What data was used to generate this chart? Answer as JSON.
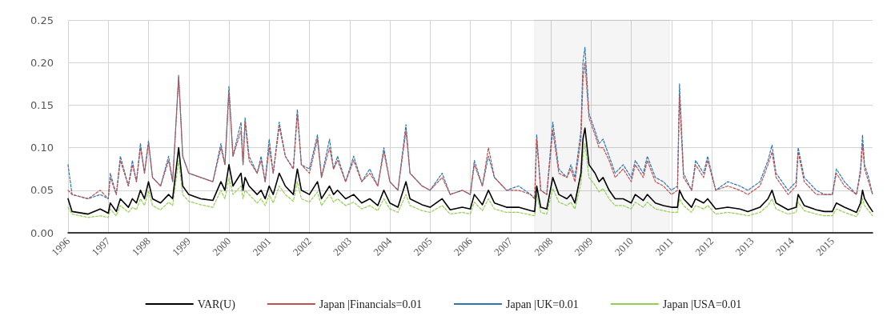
{
  "chart_data": {
    "type": "line",
    "x": [
      1996.0,
      1996.1,
      1996.5,
      1996.8,
      1997.0,
      1997.05,
      1997.2,
      1997.3,
      1997.5,
      1997.6,
      1997.7,
      1997.8,
      1997.9,
      1998.0,
      1998.1,
      1998.3,
      1998.5,
      1998.6,
      1998.75,
      1998.85,
      1999.0,
      1999.3,
      1999.6,
      1999.8,
      1999.9,
      2000.0,
      2000.1,
      2000.3,
      2000.35,
      2000.4,
      2000.5,
      2000.7,
      2000.8,
      2000.9,
      2001.0,
      2001.1,
      2001.25,
      2001.4,
      2001.6,
      2001.7,
      2001.8,
      2002.0,
      2002.2,
      2002.3,
      2002.5,
      2002.6,
      2002.7,
      2002.9,
      2003.1,
      2003.3,
      2003.5,
      2003.7,
      2003.85,
      2004.0,
      2004.2,
      2004.4,
      2004.5,
      2004.8,
      2005.0,
      2005.3,
      2005.5,
      2005.8,
      2006.0,
      2006.1,
      2006.3,
      2006.45,
      2006.6,
      2006.9,
      2007.2,
      2007.5,
      2007.6,
      2007.65,
      2007.75,
      2007.9,
      2008.05,
      2008.2,
      2008.4,
      2008.5,
      2008.6,
      2008.75,
      2008.8,
      2008.85,
      2008.95,
      2009.1,
      2009.2,
      2009.3,
      2009.45,
      2009.6,
      2009.8,
      2010.0,
      2010.1,
      2010.3,
      2010.4,
      2010.6,
      2010.8,
      2011.0,
      2011.15,
      2011.2,
      2011.3,
      2011.5,
      2011.6,
      2011.8,
      2011.9,
      2012.1,
      2012.4,
      2012.7,
      2012.9,
      2013.2,
      2013.4,
      2013.5,
      2013.6,
      2013.9,
      2014.1,
      2014.15,
      2014.3,
      2014.6,
      2014.8,
      2015.0,
      2015.1,
      2015.3,
      2015.6,
      2015.7,
      2015.75,
      2015.8,
      2015.9,
      2016.0
    ],
    "series": [
      {
        "name": "VAR(U)",
        "color": "#000000",
        "line_style": "solid",
        "values": [
          0.04,
          0.025,
          0.022,
          0.028,
          0.023,
          0.035,
          0.025,
          0.04,
          0.03,
          0.04,
          0.035,
          0.05,
          0.04,
          0.06,
          0.04,
          0.035,
          0.045,
          0.04,
          0.1,
          0.055,
          0.045,
          0.04,
          0.038,
          0.06,
          0.05,
          0.08,
          0.055,
          0.07,
          0.05,
          0.065,
          0.055,
          0.045,
          0.05,
          0.04,
          0.055,
          0.045,
          0.07,
          0.055,
          0.045,
          0.075,
          0.05,
          0.045,
          0.06,
          0.04,
          0.055,
          0.045,
          0.05,
          0.04,
          0.045,
          0.035,
          0.04,
          0.032,
          0.05,
          0.035,
          0.03,
          0.06,
          0.04,
          0.033,
          0.03,
          0.04,
          0.027,
          0.03,
          0.028,
          0.045,
          0.033,
          0.05,
          0.035,
          0.03,
          0.03,
          0.026,
          0.025,
          0.055,
          0.03,
          0.028,
          0.065,
          0.045,
          0.04,
          0.045,
          0.035,
          0.07,
          0.11,
          0.123,
          0.08,
          0.07,
          0.06,
          0.065,
          0.05,
          0.04,
          0.04,
          0.035,
          0.045,
          0.038,
          0.045,
          0.035,
          0.032,
          0.03,
          0.03,
          0.05,
          0.04,
          0.03,
          0.04,
          0.035,
          0.04,
          0.028,
          0.03,
          0.028,
          0.025,
          0.03,
          0.04,
          0.05,
          0.035,
          0.027,
          0.03,
          0.045,
          0.032,
          0.027,
          0.025,
          0.025,
          0.035,
          0.03,
          0.024,
          0.035,
          0.05,
          0.04,
          0.032,
          0.025
        ]
      },
      {
        "name": "Japan |Financials=0.01",
        "color": "#c0504d",
        "line_style": "dashed",
        "values": [
          0.05,
          0.045,
          0.04,
          0.05,
          0.04,
          0.065,
          0.045,
          0.085,
          0.055,
          0.08,
          0.06,
          0.1,
          0.07,
          0.105,
          0.065,
          0.055,
          0.085,
          0.06,
          0.183,
          0.09,
          0.07,
          0.065,
          0.06,
          0.1,
          0.08,
          0.165,
          0.09,
          0.12,
          0.08,
          0.13,
          0.085,
          0.07,
          0.085,
          0.06,
          0.1,
          0.07,
          0.125,
          0.09,
          0.075,
          0.14,
          0.08,
          0.07,
          0.11,
          0.065,
          0.1,
          0.075,
          0.085,
          0.06,
          0.085,
          0.06,
          0.07,
          0.055,
          0.095,
          0.06,
          0.05,
          0.12,
          0.07,
          0.055,
          0.05,
          0.065,
          0.045,
          0.05,
          0.045,
          0.08,
          0.055,
          0.1,
          0.065,
          0.05,
          0.05,
          0.045,
          0.04,
          0.11,
          0.05,
          0.045,
          0.12,
          0.07,
          0.065,
          0.075,
          0.06,
          0.11,
          0.18,
          0.2,
          0.135,
          0.115,
          0.1,
          0.1,
          0.085,
          0.065,
          0.075,
          0.06,
          0.08,
          0.065,
          0.085,
          0.06,
          0.055,
          0.045,
          0.05,
          0.16,
          0.065,
          0.05,
          0.08,
          0.065,
          0.085,
          0.05,
          0.055,
          0.05,
          0.045,
          0.055,
          0.08,
          0.095,
          0.065,
          0.045,
          0.055,
          0.095,
          0.06,
          0.045,
          0.045,
          0.045,
          0.07,
          0.055,
          0.045,
          0.07,
          0.105,
          0.075,
          0.06,
          0.045
        ]
      },
      {
        "name": "Japan |UK=0.01",
        "color": "#2e75b6",
        "line_style": "dashed",
        "values": [
          0.08,
          0.045,
          0.04,
          0.045,
          0.04,
          0.07,
          0.045,
          0.09,
          0.055,
          0.085,
          0.06,
          0.105,
          0.07,
          0.108,
          0.065,
          0.055,
          0.09,
          0.06,
          0.185,
          0.09,
          0.07,
          0.065,
          0.06,
          0.105,
          0.08,
          0.172,
          0.09,
          0.13,
          0.08,
          0.135,
          0.09,
          0.07,
          0.09,
          0.06,
          0.11,
          0.07,
          0.13,
          0.09,
          0.075,
          0.145,
          0.08,
          0.075,
          0.115,
          0.065,
          0.11,
          0.075,
          0.09,
          0.06,
          0.09,
          0.06,
          0.075,
          0.055,
          0.1,
          0.06,
          0.05,
          0.127,
          0.07,
          0.055,
          0.05,
          0.07,
          0.045,
          0.05,
          0.045,
          0.085,
          0.055,
          0.09,
          0.065,
          0.05,
          0.055,
          0.045,
          0.04,
          0.115,
          0.05,
          0.045,
          0.13,
          0.075,
          0.065,
          0.08,
          0.065,
          0.12,
          0.2,
          0.218,
          0.14,
          0.12,
          0.105,
          0.11,
          0.09,
          0.07,
          0.08,
          0.065,
          0.085,
          0.07,
          0.09,
          0.065,
          0.06,
          0.05,
          0.055,
          0.175,
          0.07,
          0.05,
          0.085,
          0.07,
          0.09,
          0.05,
          0.06,
          0.055,
          0.05,
          0.06,
          0.085,
          0.103,
          0.07,
          0.05,
          0.06,
          0.1,
          0.065,
          0.05,
          0.045,
          0.045,
          0.075,
          0.06,
          0.045,
          0.075,
          0.115,
          0.08,
          0.065,
          0.045
        ]
      },
      {
        "name": "Japan |USA=0.01",
        "color": "#92d050",
        "line_style": "dashed",
        "values": [
          0.03,
          0.022,
          0.018,
          0.02,
          0.018,
          0.028,
          0.02,
          0.032,
          0.024,
          0.03,
          0.027,
          0.04,
          0.032,
          0.05,
          0.032,
          0.027,
          0.036,
          0.032,
          0.085,
          0.045,
          0.037,
          0.033,
          0.03,
          0.05,
          0.04,
          0.065,
          0.045,
          0.055,
          0.04,
          0.05,
          0.045,
          0.035,
          0.04,
          0.032,
          0.045,
          0.035,
          0.055,
          0.045,
          0.037,
          0.06,
          0.04,
          0.036,
          0.048,
          0.032,
          0.045,
          0.036,
          0.04,
          0.032,
          0.036,
          0.028,
          0.032,
          0.026,
          0.04,
          0.028,
          0.024,
          0.045,
          0.032,
          0.026,
          0.024,
          0.032,
          0.022,
          0.024,
          0.022,
          0.036,
          0.026,
          0.04,
          0.028,
          0.024,
          0.024,
          0.021,
          0.02,
          0.045,
          0.024,
          0.022,
          0.052,
          0.036,
          0.032,
          0.036,
          0.028,
          0.058,
          0.09,
          0.105,
          0.065,
          0.056,
          0.048,
          0.052,
          0.04,
          0.032,
          0.032,
          0.028,
          0.036,
          0.03,
          0.036,
          0.028,
          0.026,
          0.024,
          0.024,
          0.04,
          0.032,
          0.024,
          0.032,
          0.028,
          0.032,
          0.022,
          0.024,
          0.022,
          0.02,
          0.024,
          0.032,
          0.04,
          0.028,
          0.022,
          0.024,
          0.036,
          0.026,
          0.022,
          0.02,
          0.02,
          0.028,
          0.024,
          0.019,
          0.028,
          0.04,
          0.032,
          0.026,
          0.02
        ]
      }
    ],
    "xlim": [
      1996,
      2016
    ],
    "xticks": [
      1996,
      1997,
      1998,
      1999,
      2000,
      2001,
      2002,
      2003,
      2004,
      2005,
      2006,
      2007,
      2008,
      2009,
      2010,
      2011,
      2012,
      2013,
      2014,
      2015
    ],
    "ylim": [
      0,
      0.25
    ],
    "yticks": [
      {
        "value": 0,
        "label": "0.00"
      },
      {
        "value": 0.05,
        "label": "0.05"
      },
      {
        "value": 0.1,
        "label": "0.10"
      },
      {
        "value": 0.15,
        "label": "0.15"
      },
      {
        "value": 0.2,
        "label": "0.20"
      },
      {
        "value": 0.25,
        "label": "0.25"
      }
    ],
    "bands": [
      {
        "axis": "x",
        "from": 2007.6,
        "to": 2010.95,
        "color": "#000000"
      }
    ],
    "grid": true,
    "legend": "bottom",
    "marker": "none"
  }
}
